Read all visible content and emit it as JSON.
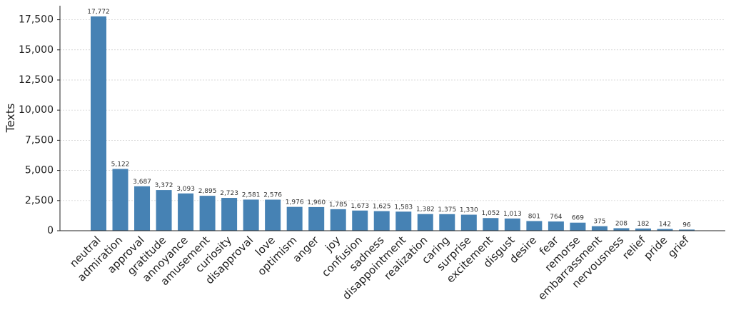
{
  "chart_data": {
    "type": "bar",
    "y_label": "Texts",
    "categories": [
      "neutral",
      "admiration",
      "approval",
      "gratitude",
      "annoyance",
      "amusement",
      "curiosity",
      "disapproval",
      "love",
      "optimism",
      "anger",
      "joy",
      "confusion",
      "sadness",
      "disappointment",
      "realization",
      "caring",
      "surprise",
      "excitement",
      "disgust",
      "desire",
      "fear",
      "remorse",
      "embarrassment",
      "nervousness",
      "relief",
      "pride",
      "grief"
    ],
    "values": [
      17772,
      5122,
      3687,
      3372,
      3093,
      2895,
      2723,
      2581,
      2576,
      1976,
      1960,
      1785,
      1673,
      1625,
      1583,
      1382,
      1375,
      1330,
      1052,
      1013,
      801,
      764,
      669,
      375,
      208,
      182,
      142,
      96
    ],
    "value_labels": [
      "17,772",
      "5,122",
      "3,687",
      "3,372",
      "3,093",
      "2,895",
      "2,723",
      "2,581",
      "2,576",
      "1,976",
      "1,960",
      "1,785",
      "1,673",
      "1,625",
      "1,583",
      "1,382",
      "1,375",
      "1,330",
      "1,052",
      "1,013",
      "801",
      "764",
      "669",
      "375",
      "208",
      "182",
      "142",
      "96"
    ],
    "color": "#4682b4",
    "ylim": [
      0,
      18660
    ],
    "yticks": [
      0,
      {
        "value": 2500,
        "label": "2,500"
      },
      {
        "value": 5000,
        "label": "5,000"
      },
      {
        "value": 7500,
        "label": "7,500"
      },
      {
        "value": 10000,
        "label": "10,000"
      },
      {
        "value": 12500,
        "label": "12,500"
      },
      {
        "value": 15000,
        "label": "15,000"
      },
      {
        "value": 17500,
        "label": "17,500"
      }
    ],
    "grid": true
  }
}
